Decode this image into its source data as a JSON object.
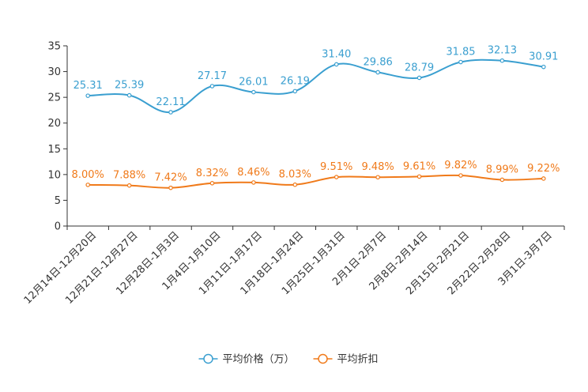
{
  "chart_data": {
    "type": "line",
    "categories": [
      "12月14日-12月20日",
      "12月21日-12月27日",
      "12月28日-1月3日",
      "1月4日-1月10日",
      "1月11日-1月17日",
      "1月18日-1月24日",
      "1月25日-1月31日",
      "2月1日-2月7日",
      "2月8日-2月14日",
      "2月15日-2月21日",
      "2月22日-2月28日",
      "3月1日-3月7日"
    ],
    "series": [
      {
        "name": "平均价格（万）",
        "color": "#3a9fd0",
        "values": [
          25.31,
          25.39,
          22.11,
          27.17,
          26.01,
          26.19,
          31.4,
          29.86,
          28.79,
          31.85,
          32.13,
          30.91
        ],
        "labels": [
          "25.31",
          "25.39",
          "22.11",
          "27.17",
          "26.01",
          "26.19",
          "31.40",
          "29.86",
          "28.79",
          "31.85",
          "32.13",
          "30.91"
        ]
      },
      {
        "name": "平均折扣",
        "color": "#f07a1a",
        "values": [
          8.0,
          7.88,
          7.42,
          8.32,
          8.46,
          8.03,
          9.51,
          9.48,
          9.61,
          9.82,
          8.99,
          9.22
        ],
        "labels": [
          "8.00%",
          "7.88%",
          "7.42%",
          "8.32%",
          "8.46%",
          "8.03%",
          "9.51%",
          "9.48%",
          "9.61%",
          "9.82%",
          "8.99%",
          "9.22%"
        ]
      }
    ],
    "yticks": [
      "0",
      "5",
      "10",
      "15",
      "20",
      "25",
      "30",
      "35"
    ],
    "ylim": [
      0,
      35
    ],
    "title": "",
    "xlabel": "",
    "ylabel": "",
    "legend_position": "bottom-center"
  }
}
